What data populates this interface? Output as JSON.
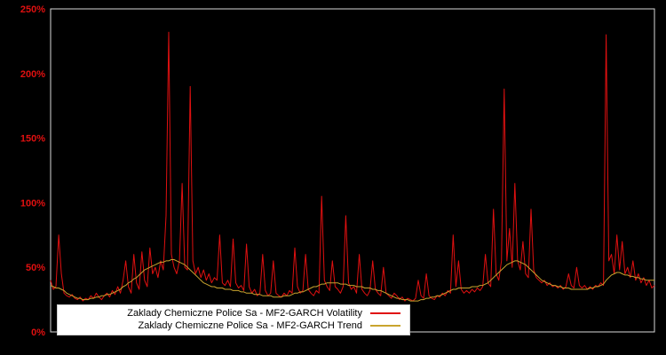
{
  "colors": {
    "background": "#000000",
    "frame": "#d9d9d9",
    "volatility": "#e01010",
    "trend": "#c9a42e",
    "axis_label": "#e01010",
    "legend_bg": "#ffffff",
    "legend_text": "#000000"
  },
  "y_axis": {
    "ticks": [
      "0%",
      "50%",
      "100%",
      "150%",
      "200%",
      "250%"
    ],
    "tick_values": [
      0,
      50,
      100,
      150,
      200,
      250
    ]
  },
  "legend": {
    "items": [
      {
        "label": "Zaklady Chemiczne Police Sa - MF2-GARCH Volatility",
        "color_key": "volatility"
      },
      {
        "label": "Zaklady Chemiczne Police Sa - MF2-GARCH Trend",
        "color_key": "trend"
      }
    ]
  },
  "chart_data": {
    "type": "line",
    "title": "",
    "xlabel": "",
    "ylabel": "",
    "y_unit": "%",
    "ylim": [
      0,
      250
    ],
    "grid": false,
    "legend_position": "bottom-left",
    "series": [
      {
        "id": "volatility-line",
        "name": "Zaklady Chemiczne Police Sa - MF2-GARCH Volatility",
        "color": "#e01010",
        "values": [
          40,
          33,
          35,
          75,
          45,
          30,
          28,
          27,
          29,
          26,
          25,
          27,
          24,
          26,
          25,
          28,
          26,
          30,
          27,
          25,
          28,
          30,
          27,
          32,
          29,
          35,
          30,
          40,
          55,
          35,
          30,
          60,
          38,
          33,
          62,
          40,
          35,
          65,
          45,
          50,
          42,
          55,
          48,
          90,
          232,
          60,
          50,
          45,
          55,
          115,
          50,
          48,
          190,
          55,
          45,
          50,
          42,
          48,
          40,
          45,
          38,
          42,
          40,
          75,
          38,
          36,
          40,
          35,
          72,
          38,
          34,
          36,
          32,
          68,
          35,
          30,
          33,
          28,
          30,
          60,
          32,
          28,
          30,
          55,
          30,
          28,
          27,
          30,
          28,
          32,
          30,
          65,
          35,
          30,
          32,
          60,
          33,
          30,
          28,
          32,
          30,
          105,
          40,
          35,
          32,
          55,
          35,
          33,
          30,
          35,
          90,
          38,
          33,
          35,
          30,
          60,
          33,
          30,
          28,
          32,
          55,
          33,
          30,
          28,
          50,
          30,
          28,
          26,
          30,
          28,
          25,
          27,
          24,
          26,
          25,
          24,
          26,
          40,
          28,
          26,
          45,
          28,
          26,
          25,
          28,
          27,
          30,
          28,
          32,
          30,
          75,
          35,
          55,
          33,
          30,
          32,
          30,
          33,
          31,
          34,
          32,
          35,
          60,
          38,
          35,
          95,
          45,
          40,
          55,
          188,
          55,
          80,
          50,
          115,
          55,
          48,
          70,
          45,
          42,
          95,
          48,
          42,
          40,
          38,
          40,
          36,
          38,
          35,
          36,
          34,
          36,
          33,
          35,
          45,
          36,
          34,
          50,
          36,
          34,
          36,
          33,
          35,
          33,
          36,
          35,
          38,
          36,
          230,
          55,
          60,
          45,
          75,
          48,
          70,
          45,
          50,
          42,
          55,
          40,
          45,
          38,
          42,
          36,
          40,
          34,
          36
        ]
      },
      {
        "id": "trend-line",
        "name": "Zaklady Chemiczne Police Sa - MF2-GARCH Trend",
        "color": "#c9a42e",
        "values": [
          36,
          35,
          34,
          34,
          33,
          32,
          30,
          29,
          28,
          27,
          26,
          26,
          25,
          25,
          25,
          26,
          26,
          27,
          27,
          28,
          28,
          29,
          29,
          30,
          31,
          32,
          33,
          35,
          36,
          38,
          39,
          41,
          42,
          44,
          46,
          48,
          49,
          50,
          51,
          52,
          53,
          54,
          54,
          55,
          55,
          56,
          56,
          55,
          54,
          53,
          52,
          50,
          48,
          46,
          44,
          42,
          40,
          38,
          37,
          36,
          35,
          35,
          34,
          34,
          34,
          33,
          33,
          33,
          32,
          32,
          32,
          31,
          31,
          30,
          30,
          30,
          29,
          29,
          29,
          28,
          28,
          28,
          28,
          27,
          27,
          27,
          27,
          28,
          28,
          28,
          29,
          30,
          30,
          31,
          31,
          32,
          33,
          34,
          35,
          35,
          36,
          37,
          37,
          38,
          38,
          38,
          38,
          38,
          37,
          37,
          37,
          36,
          36,
          36,
          35,
          35,
          35,
          34,
          34,
          34,
          33,
          33,
          32,
          32,
          31,
          30,
          29,
          28,
          27,
          26,
          26,
          25,
          25,
          25,
          24,
          24,
          24,
          24,
          25,
          25,
          26,
          26,
          27,
          27,
          28,
          28,
          29,
          30,
          31,
          32,
          33,
          33,
          34,
          34,
          34,
          34,
          34,
          35,
          35,
          35,
          36,
          36,
          37,
          38,
          40,
          42,
          44,
          46,
          48,
          50,
          52,
          53,
          54,
          55,
          55,
          54,
          53,
          52,
          50,
          48,
          46,
          44,
          42,
          40,
          39,
          38,
          37,
          36,
          36,
          35,
          35,
          34,
          34,
          34,
          33,
          33,
          33,
          33,
          33,
          33,
          33,
          34,
          34,
          35,
          35,
          36,
          37,
          40,
          42,
          44,
          45,
          46,
          46,
          45,
          44,
          44,
          43,
          43,
          42,
          42,
          41,
          41,
          40,
          40,
          40,
          40
        ]
      }
    ]
  }
}
